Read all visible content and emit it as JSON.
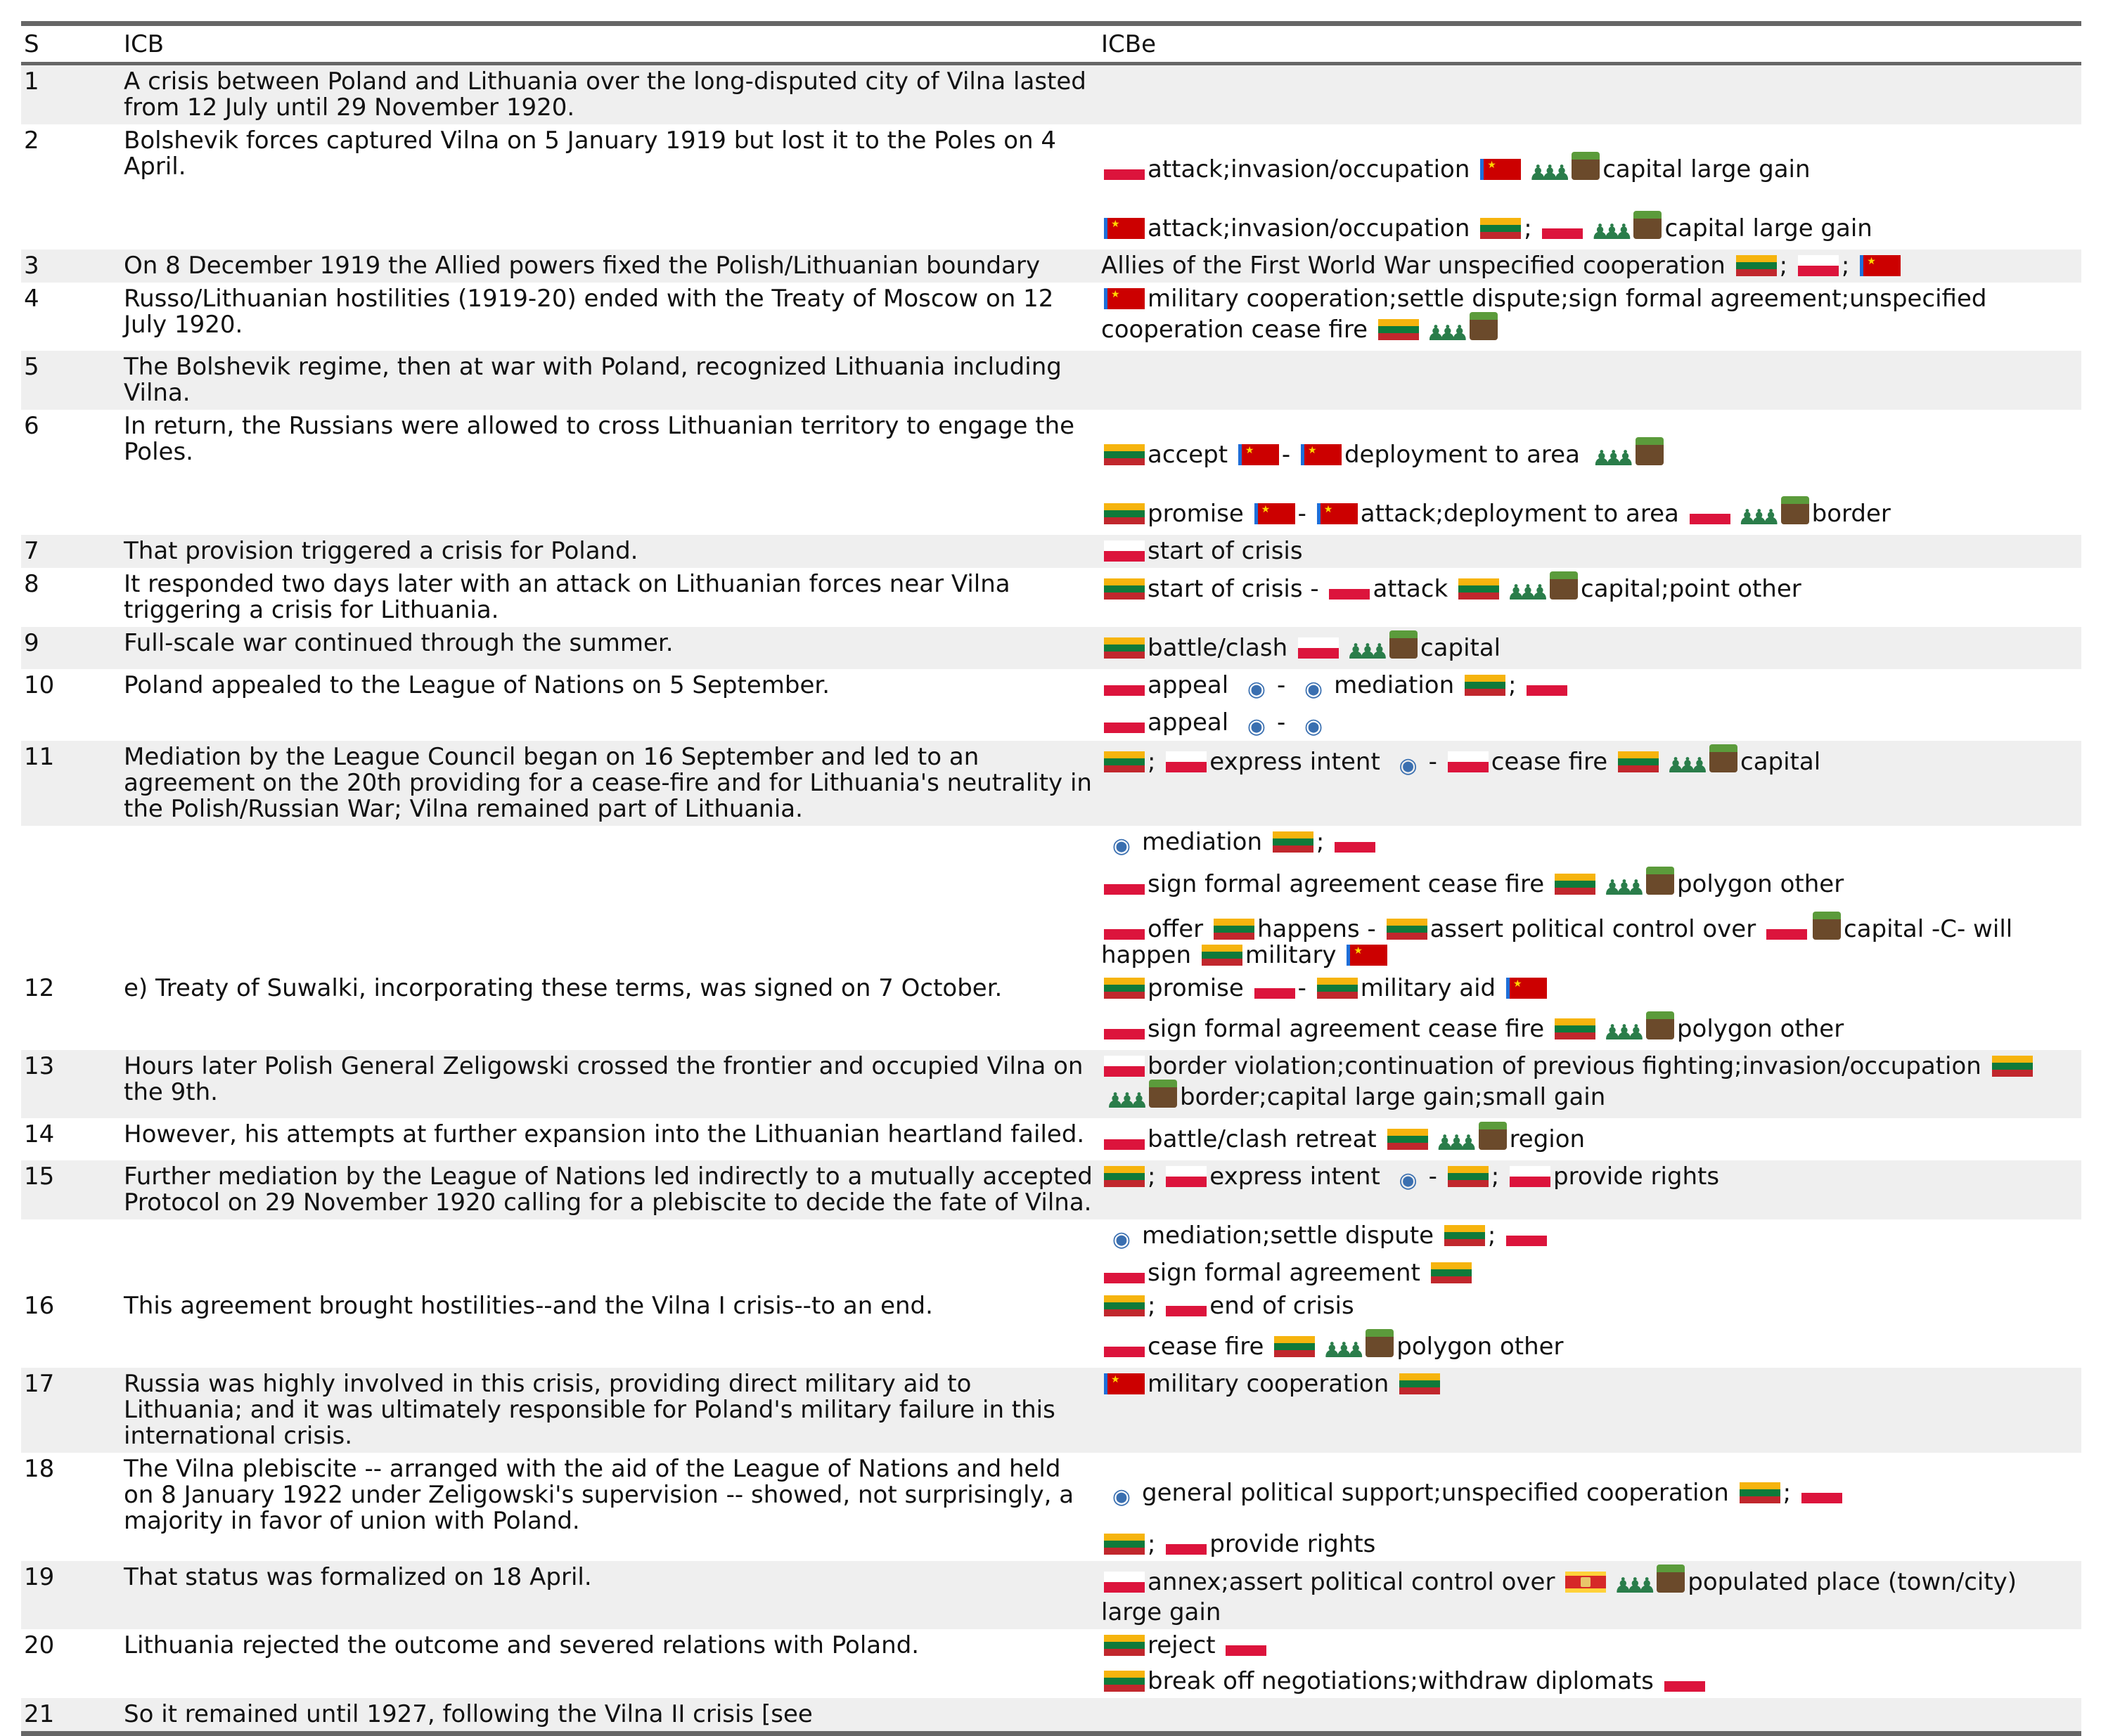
{
  "table": {
    "headers": [
      "S",
      "ICB",
      "ICBe"
    ],
    "rows": [
      {
        "s": "1",
        "icb": "A crisis between Poland and Lithuania over the long-disputed city of Vilna lasted from 12 July until 29 November 1920.",
        "shade": true,
        "events": []
      },
      {
        "s": "2",
        "icb": "Bolshevik forces captured Vilna on 5 January 1919 but lost it to the Poles on 4 April.",
        "shade": false,
        "events": [
          {
            "gap": true,
            "parts": [
              {
                "flag": "pl"
              },
              {
                "t": "attack;invasion/occupation"
              },
              {
                "flag": "ru"
              },
              {
                "icon": "soldiers"
              },
              {
                "icon": "land"
              },
              {
                "t": "capital large gain"
              }
            ]
          },
          {
            "gap": true,
            "parts": [
              {
                "flag": "ru"
              },
              {
                "t": "attack;invasion/occupation"
              },
              {
                "flag": "lt"
              },
              {
                "t": ";"
              },
              {
                "flag": "pl"
              },
              {
                "icon": "soldiers"
              },
              {
                "icon": "land"
              },
              {
                "t": "capital large gain"
              }
            ]
          }
        ]
      },
      {
        "s": "3",
        "icb": "On 8 December 1919 the Allied powers fixed the Polish/Lithuanian boundary",
        "shade": true,
        "events": [
          {
            "parts": [
              {
                "t": "Allies of the First World War unspecified cooperation"
              },
              {
                "flag": "lt"
              },
              {
                "t": ";"
              },
              {
                "flag": "pl"
              },
              {
                "t": ";"
              },
              {
                "flag": "ru"
              }
            ]
          }
        ]
      },
      {
        "s": "4",
        "icb": "Russo/Lithuanian hostilities (1919-20) ended with the Treaty of Moscow on 12 July 1920.",
        "shade": false,
        "events": [
          {
            "parts": [
              {
                "flag": "ru"
              },
              {
                "t": "military cooperation;settle dispute;sign formal agreement;unspecified cooperation cease fire"
              },
              {
                "flag": "lt"
              },
              {
                "icon": "soldiers"
              },
              {
                "icon": "land"
              }
            ]
          }
        ]
      },
      {
        "s": "5",
        "icb": "The Bolshevik regime, then at war with Poland, recognized Lithuania including Vilna.",
        "shade": true,
        "events": []
      },
      {
        "s": "6",
        "icb": "In return, the Russians were allowed to cross Lithuanian territory to engage the Poles.",
        "shade": false,
        "events": [
          {
            "gap": true,
            "parts": [
              {
                "flag": "lt"
              },
              {
                "t": "accept"
              },
              {
                "flag": "ru"
              },
              {
                "t": "-"
              },
              {
                "flag": "ru"
              },
              {
                "t": "deployment to area"
              },
              {
                "icon": "soldiers"
              },
              {
                "icon": "land"
              }
            ]
          },
          {
            "gap": true,
            "parts": [
              {
                "flag": "lt"
              },
              {
                "t": "promise"
              },
              {
                "flag": "ru"
              },
              {
                "t": "-"
              },
              {
                "flag": "ru"
              },
              {
                "t": "attack;deployment to area"
              },
              {
                "flag": "pl"
              },
              {
                "icon": "soldiers"
              },
              {
                "icon": "land"
              },
              {
                "t": "border"
              }
            ]
          }
        ]
      },
      {
        "s": "7",
        "icb": "That provision triggered a crisis for Poland.",
        "shade": true,
        "events": [
          {
            "parts": [
              {
                "flag": "pl"
              },
              {
                "t": "start of crisis"
              }
            ]
          }
        ]
      },
      {
        "s": "8",
        "icb": "It responded two days later with an attack on Lithuanian forces near Vilna triggering a crisis for Lithuania.",
        "shade": false,
        "events": [
          {
            "parts": [
              {
                "flag": "lt"
              },
              {
                "t": "start of crisis -"
              },
              {
                "flag": "pl"
              },
              {
                "t": "attack"
              },
              {
                "flag": "lt"
              },
              {
                "icon": "soldiers"
              },
              {
                "icon": "land"
              },
              {
                "t": "capital;point other"
              }
            ]
          }
        ]
      },
      {
        "s": "9",
        "icb": "Full-scale war continued through the summer.",
        "shade": true,
        "events": [
          {
            "parts": [
              {
                "flag": "lt"
              },
              {
                "t": "battle/clash"
              },
              {
                "flag": "pl"
              },
              {
                "icon": "soldiers"
              },
              {
                "icon": "land"
              },
              {
                "t": "capital"
              }
            ]
          }
        ]
      },
      {
        "s": "10",
        "icb": "Poland appealed to the League of Nations on 5 September.",
        "shade": false,
        "events": [
          {
            "parts": [
              {
                "flag": "pl"
              },
              {
                "t": "appeal"
              },
              {
                "icon": "league"
              },
              {
                "t": "-"
              },
              {
                "icon": "league"
              },
              {
                "t": "mediation"
              },
              {
                "flag": "lt"
              },
              {
                "t": ";"
              },
              {
                "flag": "pl"
              }
            ]
          },
          {
            "parts": [
              {
                "flag": "pl"
              },
              {
                "t": "appeal"
              },
              {
                "icon": "league"
              },
              {
                "t": "-"
              },
              {
                "icon": "league"
              }
            ]
          }
        ]
      },
      {
        "s": "11",
        "icb": "Mediation by the League Council began on 16 September and led to an agreement on the 20th providing for a cease-fire and for Lithuania's neutrality in the Polish/Russian War; Vilna remained part of Lithuania.",
        "shade": true,
        "events": [
          {
            "parts": [
              {
                "flag": "lt"
              },
              {
                "t": ";"
              },
              {
                "flag": "pl"
              },
              {
                "t": "express intent"
              },
              {
                "icon": "league"
              },
              {
                "t": "-"
              },
              {
                "flag": "pl"
              },
              {
                "t": "cease fire"
              },
              {
                "flag": "lt"
              },
              {
                "icon": "soldiers"
              },
              {
                "icon": "land"
              },
              {
                "t": "capital"
              }
            ]
          }
        ]
      },
      {
        "s": "",
        "icb": "",
        "shade": false,
        "events": [
          {
            "parts": [
              {
                "icon": "league"
              },
              {
                "t": "mediation"
              },
              {
                "flag": "lt"
              },
              {
                "t": ";"
              },
              {
                "flag": "pl"
              }
            ]
          },
          {
            "parts": [
              {
                "flag": "pl"
              },
              {
                "t": "sign formal agreement cease fire"
              },
              {
                "flag": "lt"
              },
              {
                "icon": "soldiers"
              },
              {
                "icon": "land"
              },
              {
                "t": "polygon other"
              }
            ]
          },
          {
            "parts": [
              {
                "flag": "pl"
              },
              {
                "t": "offer"
              },
              {
                "flag": "lt"
              },
              {
                "t": "happens -"
              },
              {
                "flag": "lt"
              },
              {
                "t": "assert political control over"
              },
              {
                "flag": "pl"
              },
              {
                "icon": "land"
              },
              {
                "t": "capital -C- will happen"
              },
              {
                "flag": "lt"
              },
              {
                "t": "military"
              },
              {
                "flag": "ru"
              }
            ]
          }
        ]
      },
      {
        "s": "12",
        "icb": "e) Treaty of Suwalki, incorporating these terms, was signed on 7 October.",
        "shade": false,
        "events": [
          {
            "parts": [
              {
                "flag": "lt"
              },
              {
                "t": "promise"
              },
              {
                "flag": "pl"
              },
              {
                "t": "-"
              },
              {
                "flag": "lt"
              },
              {
                "t": "military aid"
              },
              {
                "flag": "ru"
              }
            ]
          },
          {
            "parts": [
              {
                "flag": "pl"
              },
              {
                "t": "sign formal agreement cease fire"
              },
              {
                "flag": "lt"
              },
              {
                "icon": "soldiers"
              },
              {
                "icon": "land"
              },
              {
                "t": "polygon other"
              }
            ]
          }
        ]
      },
      {
        "s": "13",
        "icb": "Hours later Polish General Zeligowski crossed the frontier and occupied Vilna on the 9th.",
        "shade": true,
        "events": [
          {
            "parts": [
              {
                "flag": "pl"
              },
              {
                "t": "border violation;continuation of previous fighting;invasion/occupation"
              },
              {
                "flag": "lt"
              },
              {
                "icon": "soldiers"
              },
              {
                "icon": "land"
              },
              {
                "t": "border;capital large gain;small gain"
              }
            ]
          }
        ]
      },
      {
        "s": "14",
        "icb": "However, his attempts at further expansion into the Lithuanian heartland failed.",
        "shade": false,
        "events": [
          {
            "parts": [
              {
                "flag": "pl"
              },
              {
                "t": "battle/clash retreat"
              },
              {
                "flag": "lt"
              },
              {
                "icon": "soldiers"
              },
              {
                "icon": "land"
              },
              {
                "t": "region"
              }
            ]
          }
        ]
      },
      {
        "s": "15",
        "icb": "Further mediation by the League of Nations led indirectly to a mutually accepted Protocol on 29 November 1920 calling for a plebiscite to decide the fate of Vilna.",
        "shade": true,
        "events": [
          {
            "parts": [
              {
                "flag": "lt"
              },
              {
                "t": ";"
              },
              {
                "flag": "pl"
              },
              {
                "t": "express intent"
              },
              {
                "icon": "league"
              },
              {
                "t": "-"
              },
              {
                "flag": "lt"
              },
              {
                "t": ";"
              },
              {
                "flag": "pl"
              },
              {
                "t": "provide rights"
              }
            ]
          }
        ]
      },
      {
        "s": "",
        "icb": "",
        "shade": false,
        "events": [
          {
            "parts": [
              {
                "icon": "league"
              },
              {
                "t": "mediation;settle dispute"
              },
              {
                "flag": "lt"
              },
              {
                "t": ";"
              },
              {
                "flag": "pl"
              }
            ]
          },
          {
            "parts": [
              {
                "flag": "pl"
              },
              {
                "t": "sign formal agreement"
              },
              {
                "flag": "lt"
              }
            ]
          }
        ]
      },
      {
        "s": "16",
        "icb": "This agreement brought hostilities--and the Vilna I crisis--to an end.",
        "shade": false,
        "events": [
          {
            "parts": [
              {
                "flag": "lt"
              },
              {
                "t": ";"
              },
              {
                "flag": "pl"
              },
              {
                "t": "end of crisis"
              }
            ]
          },
          {
            "parts": [
              {
                "flag": "pl"
              },
              {
                "t": "cease fire"
              },
              {
                "flag": "lt"
              },
              {
                "icon": "soldiers"
              },
              {
                "icon": "land"
              },
              {
                "t": "polygon other"
              }
            ]
          }
        ]
      },
      {
        "s": "17",
        "icb": "Russia was highly involved in this crisis, providing direct military aid to Lithuania; and it was ultimately responsible for Poland's military failure in this international crisis.",
        "shade": true,
        "events": [
          {
            "parts": [
              {
                "flag": "ru"
              },
              {
                "t": "military cooperation"
              },
              {
                "flag": "lt"
              }
            ]
          }
        ]
      },
      {
        "s": "18",
        "icb": "The Vilna plebiscite -- arranged with the aid of the League of Nations and held on 8 January 1922 under Zeligowski's supervision -- showed, not surprisingly, a majority in favor of union with Poland.",
        "shade": false,
        "events": [
          {
            "gap": true,
            "parts": [
              {
                "icon": "league"
              },
              {
                "t": "general political support;unspecified cooperation"
              },
              {
                "flag": "lt"
              },
              {
                "t": ";"
              },
              {
                "flag": "pl"
              }
            ]
          },
          {
            "gap": true,
            "parts": [
              {
                "flag": "lt"
              },
              {
                "t": ";"
              },
              {
                "flag": "pl"
              },
              {
                "t": "provide rights"
              }
            ]
          }
        ]
      },
      {
        "s": "19",
        "icb": "That status was formalized on 18 April.",
        "shade": true,
        "events": [
          {
            "parts": [
              {
                "flag": "pl"
              },
              {
                "t": "annex;assert political control over"
              },
              {
                "flag": "vi"
              },
              {
                "icon": "soldiers"
              },
              {
                "icon": "land"
              },
              {
                "t": "populated place (town/city) large gain"
              }
            ]
          }
        ]
      },
      {
        "s": "20",
        "icb": "Lithuania rejected the outcome and severed relations with Poland.",
        "shade": false,
        "events": [
          {
            "parts": [
              {
                "flag": "lt"
              },
              {
                "t": "reject"
              },
              {
                "flag": "pl"
              }
            ]
          },
          {
            "parts": [
              {
                "flag": "lt"
              },
              {
                "t": "break off negotiations;withdraw diplomats"
              },
              {
                "flag": "pl"
              }
            ]
          }
        ]
      },
      {
        "s": "21",
        "icb": "So it remained until 1927, following the Vilna II crisis [see",
        "shade": true,
        "events": []
      }
    ]
  }
}
